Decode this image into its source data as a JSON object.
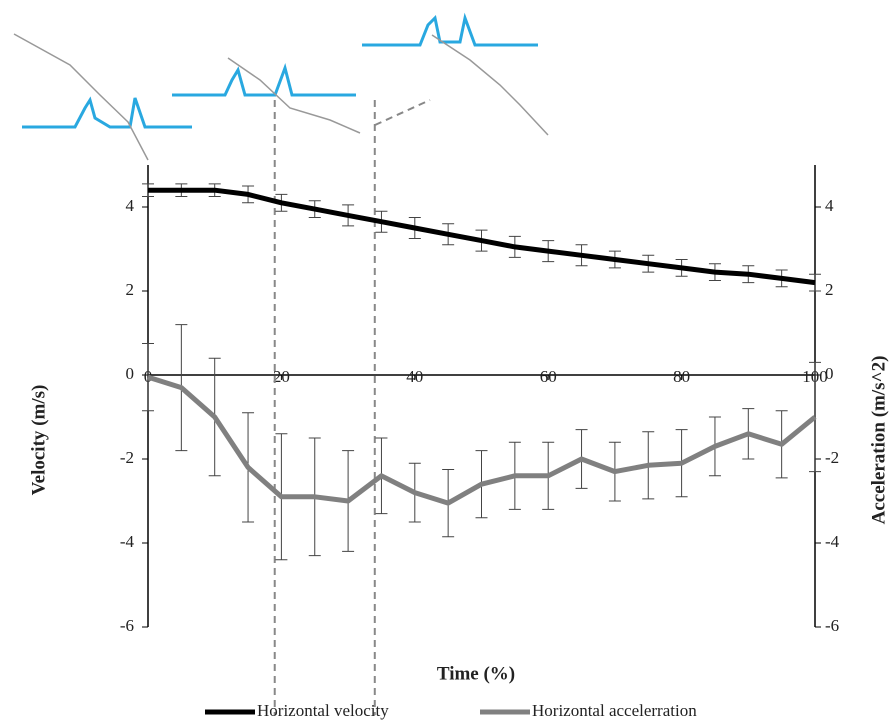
{
  "chart_data": {
    "type": "line",
    "x": [
      0,
      5,
      10,
      15,
      20,
      25,
      30,
      35,
      40,
      45,
      50,
      55,
      60,
      65,
      70,
      75,
      80,
      85,
      90,
      95,
      100
    ],
    "series": [
      {
        "name": "Horizontal velocity",
        "color": "#000000",
        "values": [
          4.4,
          4.4,
          4.4,
          4.3,
          4.1,
          3.95,
          3.8,
          3.65,
          3.5,
          3.35,
          3.2,
          3.05,
          2.95,
          2.85,
          2.75,
          2.65,
          2.55,
          2.45,
          2.4,
          2.3,
          2.2
        ],
        "errors": [
          0.15,
          0.15,
          0.15,
          0.2,
          0.2,
          0.2,
          0.25,
          0.25,
          0.25,
          0.25,
          0.25,
          0.25,
          0.25,
          0.25,
          0.2,
          0.2,
          0.2,
          0.2,
          0.2,
          0.2,
          0.2
        ]
      },
      {
        "name": "Horizontal accelerration",
        "color": "#808080",
        "axis": "y2",
        "values": [
          -0.05,
          -0.3,
          -1.0,
          -2.2,
          -2.9,
          -2.9,
          -3.0,
          -2.4,
          -2.8,
          -3.05,
          -2.6,
          -2.4,
          -2.4,
          -2.0,
          -2.3,
          -2.15,
          -2.1,
          -1.7,
          -1.4,
          -1.65,
          -1.0
        ],
        "errors": [
          0.8,
          1.5,
          1.4,
          1.3,
          1.5,
          1.4,
          1.2,
          0.9,
          0.7,
          0.8,
          0.8,
          0.8,
          0.8,
          0.7,
          0.7,
          0.8,
          0.8,
          0.7,
          0.6,
          0.8,
          1.3
        ]
      }
    ],
    "xlabel": "Time (%)",
    "ylabel": "Velocity  (m/s)",
    "y2label": "Acceleration (m/s^2)",
    "xlim": [
      0,
      100
    ],
    "xticks": [
      0,
      20,
      40,
      60,
      80,
      100
    ],
    "ylim": [
      -6,
      5
    ],
    "yticks": [
      -6,
      -4,
      -2,
      0,
      2,
      4
    ],
    "y2lim": [
      -6,
      5
    ],
    "y2ticks": [
      -6,
      -4,
      -2,
      0,
      2,
      4
    ],
    "event_lines": [
      19,
      34
    ],
    "legend": "bottom"
  }
}
